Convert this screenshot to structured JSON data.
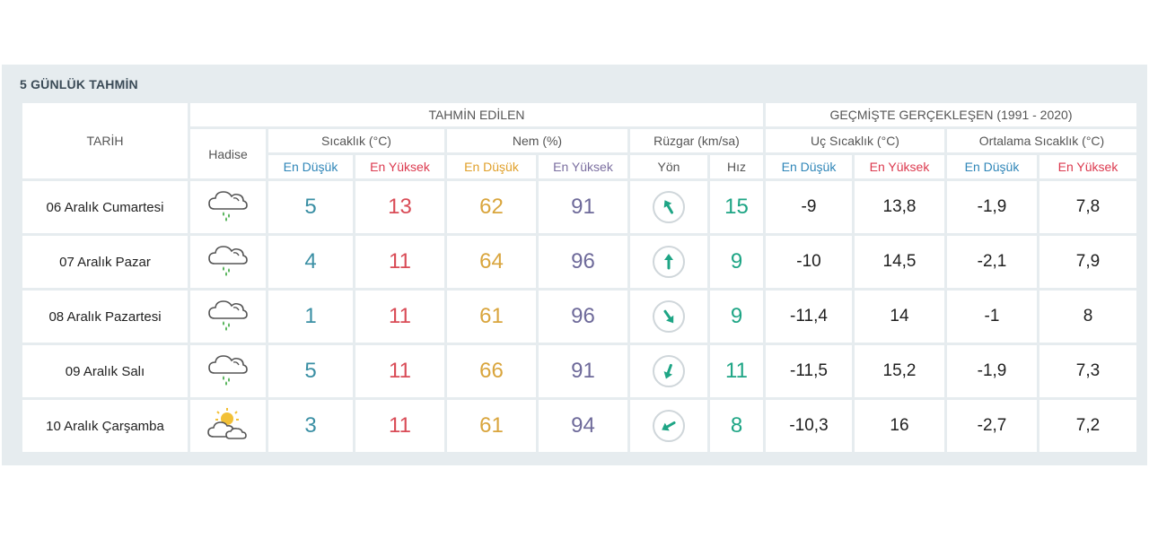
{
  "title": "5 GÜNLÜK TAHMİN",
  "headers": {
    "date": "TARİH",
    "forecast_group": "TAHMİN EDİLEN",
    "history_group": "GEÇMİŞTE GERÇEKLEŞEN (1991 - 2020)",
    "phenomenon": "Hadise",
    "temperature": "Sıcaklık (°C)",
    "humidity": "Nem (%)",
    "wind": "Rüzgar (km/sa)",
    "extreme_temp": "Uç Sıcaklık (°C)",
    "avg_temp": "Ortalama Sıcaklık (°C)",
    "low": "En Düşük",
    "high": "En Yüksek",
    "direction": "Yön",
    "speed": "Hız"
  },
  "rows": [
    {
      "date": "06 Aralık Cumartesi",
      "icon": "rain-cloud-icon",
      "temp_low": "5",
      "temp_high": "13",
      "hum_low": "62",
      "hum_high": "91",
      "wind_dir_deg": 330,
      "wind_speed": "15",
      "ext_low": "-9",
      "ext_high": "13,8",
      "avg_low": "-1,9",
      "avg_high": "7,8"
    },
    {
      "date": "07 Aralık Pazar",
      "icon": "rain-cloud-icon",
      "temp_low": "4",
      "temp_high": "11",
      "hum_low": "64",
      "hum_high": "96",
      "wind_dir_deg": 0,
      "wind_speed": "9",
      "ext_low": "-10",
      "ext_high": "14,5",
      "avg_low": "-2,1",
      "avg_high": "7,9"
    },
    {
      "date": "08 Aralık Pazartesi",
      "icon": "rain-cloud-icon",
      "temp_low": "1",
      "temp_high": "11",
      "hum_low": "61",
      "hum_high": "96",
      "wind_dir_deg": 145,
      "wind_speed": "9",
      "ext_low": "-11,4",
      "ext_high": "14",
      "avg_low": "-1",
      "avg_high": "8"
    },
    {
      "date": "09 Aralık Salı",
      "icon": "rain-cloud-icon",
      "temp_low": "5",
      "temp_high": "11",
      "hum_low": "66",
      "hum_high": "91",
      "wind_dir_deg": 200,
      "wind_speed": "11",
      "ext_low": "-11,5",
      "ext_high": "15,2",
      "avg_low": "-1,9",
      "avg_high": "7,3"
    },
    {
      "date": "10 Aralık Çarşamba",
      "icon": "partly-cloudy-icon",
      "temp_low": "3",
      "temp_high": "11",
      "hum_low": "61",
      "hum_high": "94",
      "wind_dir_deg": 240,
      "wind_speed": "8",
      "ext_low": "-10,3",
      "ext_high": "16",
      "avg_low": "-2,7",
      "avg_high": "7,2"
    }
  ],
  "colors": {
    "panel_bg": "#e6ecef",
    "low": "#3a8fa4",
    "high": "#d94c57",
    "humidity_low": "#d9a53d",
    "humidity_high": "#6e6a9a",
    "wind_speed": "#1ea585",
    "arrow": "#1ea585"
  }
}
